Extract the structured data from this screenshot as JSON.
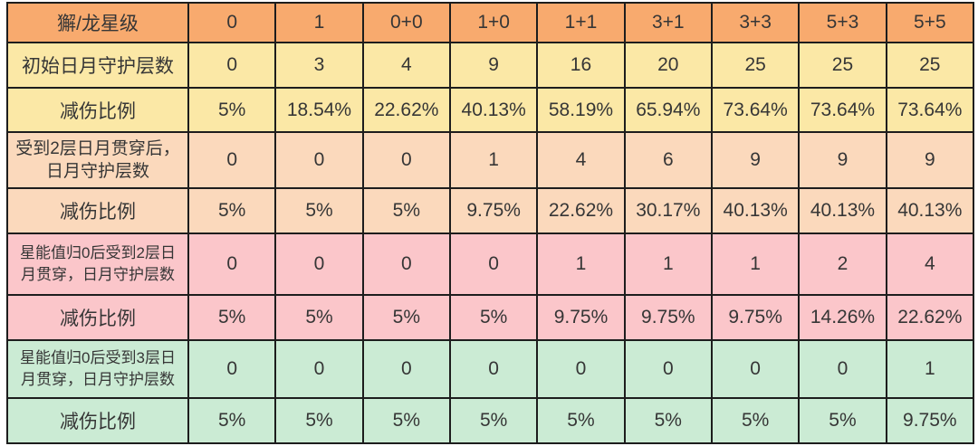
{
  "chart_data": {
    "type": "table",
    "header": {
      "label": "獬/龙星级",
      "columns": [
        "0",
        "1",
        "0+0",
        "1+0",
        "1+1",
        "3+1",
        "3+3",
        "5+3",
        "5+5"
      ]
    },
    "rows": [
      {
        "label": "初始日月守护层数",
        "band": "yellow",
        "values": [
          "0",
          "3",
          "4",
          "9",
          "16",
          "20",
          "25",
          "25",
          "25"
        ]
      },
      {
        "label": "减伤比例",
        "band": "yellow",
        "values": [
          "5%",
          "18.54%",
          "22.62%",
          "40.13%",
          "58.19%",
          "65.94%",
          "73.64%",
          "73.64%",
          "73.64%"
        ]
      },
      {
        "label": "受到2层日月贯穿后，日月守护层数",
        "band": "peach",
        "values": [
          "0",
          "0",
          "0",
          "1",
          "4",
          "6",
          "9",
          "9",
          "9"
        ]
      },
      {
        "label": "减伤比例",
        "band": "peach",
        "values": [
          "5%",
          "5%",
          "5%",
          "9.75%",
          "22.62%",
          "30.17%",
          "40.13%",
          "40.13%",
          "40.13%"
        ]
      },
      {
        "label": "星能值归0后受到2层日月贯穿，日月守护层数",
        "band": "pink",
        "values": [
          "0",
          "0",
          "0",
          "0",
          "1",
          "1",
          "1",
          "2",
          "4"
        ]
      },
      {
        "label": "减伤比例",
        "band": "pink",
        "values": [
          "5%",
          "5%",
          "5%",
          "5%",
          "9.75%",
          "9.75%",
          "9.75%",
          "14.26%",
          "22.62%"
        ]
      },
      {
        "label": "星能值归0后受到3层日月贯穿，日月守护层数",
        "band": "green",
        "values": [
          "0",
          "0",
          "0",
          "0",
          "0",
          "0",
          "0",
          "0",
          "1"
        ]
      },
      {
        "label": "减伤比例",
        "band": "green",
        "values": [
          "5%",
          "5%",
          "5%",
          "5%",
          "5%",
          "5%",
          "5%",
          "5%",
          "9.75%"
        ]
      }
    ],
    "band_colors": {
      "header": "#F8AA6E",
      "yellow": "#FBE8A6",
      "peach": "#FBD9BC",
      "pink": "#FBC6CA",
      "green": "#CBEBD4"
    },
    "border_color": "#1d1d1d",
    "text_color": "#363636"
  }
}
